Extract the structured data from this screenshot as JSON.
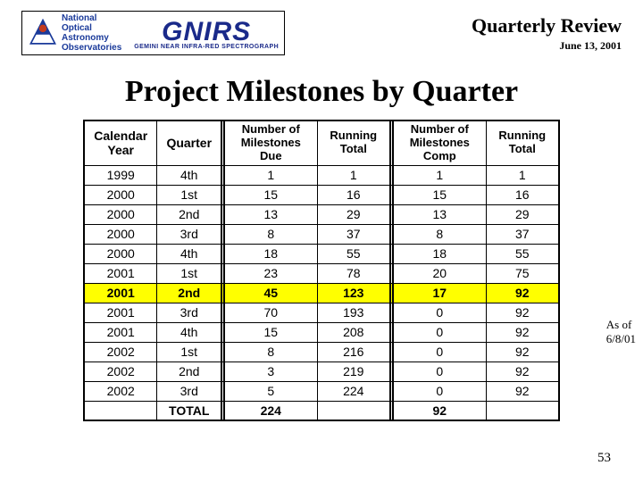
{
  "header": {
    "noao_lines": [
      "National",
      "Optical",
      "Astronomy",
      "Observatories"
    ],
    "gnirs": "GNIRS",
    "gnirs_sub": "GEMINI NEAR INFRA-RED SPECTROGRAPH",
    "review": "Quarterly Review",
    "date": "June 13, 2001"
  },
  "title": "Project Milestones by Quarter",
  "table": {
    "headers": {
      "c1": "Calendar Year",
      "c2": "Quarter",
      "c3a": "Number of",
      "c3b": "Milestones",
      "c3c": "Due",
      "c4a": "Running",
      "c4b": "Total",
      "c5a": "Number of",
      "c5b": "Milestones",
      "c5c": "Comp",
      "c6a": "Running",
      "c6b": "Total"
    },
    "rows": [
      {
        "year": "1999",
        "q": "4th",
        "due": "1",
        "rt1": "1",
        "comp": "1",
        "rt2": "1",
        "hl": false
      },
      {
        "year": "2000",
        "q": "1st",
        "due": "15",
        "rt1": "16",
        "comp": "15",
        "rt2": "16",
        "hl": false
      },
      {
        "year": "2000",
        "q": "2nd",
        "due": "13",
        "rt1": "29",
        "comp": "13",
        "rt2": "29",
        "hl": false
      },
      {
        "year": "2000",
        "q": "3rd",
        "due": "8",
        "rt1": "37",
        "comp": "8",
        "rt2": "37",
        "hl": false
      },
      {
        "year": "2000",
        "q": "4th",
        "due": "18",
        "rt1": "55",
        "comp": "18",
        "rt2": "55",
        "hl": false
      },
      {
        "year": "2001",
        "q": "1st",
        "due": "23",
        "rt1": "78",
        "comp": "20",
        "rt2": "75",
        "hl": false
      },
      {
        "year": "2001",
        "q": "2nd",
        "due": "45",
        "rt1": "123",
        "comp": "17",
        "rt2": "92",
        "hl": true
      },
      {
        "year": "2001",
        "q": "3rd",
        "due": "70",
        "rt1": "193",
        "comp": "0",
        "rt2": "92",
        "hl": false
      },
      {
        "year": "2001",
        "q": "4th",
        "due": "15",
        "rt1": "208",
        "comp": "0",
        "rt2": "92",
        "hl": false
      },
      {
        "year": "2002",
        "q": "1st",
        "due": "8",
        "rt1": "216",
        "comp": "0",
        "rt2": "92",
        "hl": false
      },
      {
        "year": "2002",
        "q": "2nd",
        "due": "3",
        "rt1": "219",
        "comp": "0",
        "rt2": "92",
        "hl": false
      },
      {
        "year": "2002",
        "q": "3rd",
        "due": "5",
        "rt1": "224",
        "comp": "0",
        "rt2": "92",
        "hl": false
      }
    ],
    "total": {
      "label": "TOTAL",
      "due": "224",
      "comp": "92"
    }
  },
  "annotation": {
    "l1": "As of",
    "l2": "6/8/01"
  },
  "page": "53",
  "colors": {
    "highlight": "#ffff00",
    "logo_blue": "#1a2a8a",
    "noao_red": "#c23a1e"
  }
}
